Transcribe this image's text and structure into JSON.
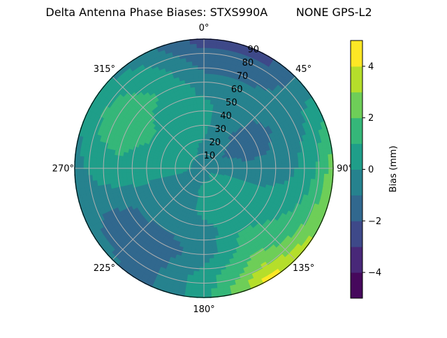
{
  "chart_data": {
    "type": "heatmap",
    "subtype": "polar-filled-contour",
    "title": "Delta Antenna Phase Biases: STXS990A        NONE GPS-L2",
    "colorbar_label": "Bias (mm)",
    "colormap": "viridis",
    "levels": [
      -5,
      -4,
      -3,
      -2,
      -1,
      0,
      1,
      2,
      3,
      4,
      5
    ],
    "level_colors": [
      "#46085c",
      "#482878",
      "#3e4989",
      "#31688e",
      "#26828e",
      "#1f9e89",
      "#35b779",
      "#6ece58",
      "#b5de2b",
      "#fde725"
    ],
    "colorbar_ticks": [
      "−4",
      "−2",
      "0",
      "2",
      "4"
    ],
    "colorbar_tick_values": [
      -4,
      -2,
      0,
      2,
      4
    ],
    "angle_ticks": [
      {
        "deg": 0,
        "label": "0°"
      },
      {
        "deg": 45,
        "label": "45°"
      },
      {
        "deg": 90,
        "label": "90°"
      },
      {
        "deg": 135,
        "label": "135°"
      },
      {
        "deg": 180,
        "label": "180°"
      },
      {
        "deg": 225,
        "label": "225°"
      },
      {
        "deg": 270,
        "label": "270°"
      },
      {
        "deg": 315,
        "label": "315°"
      }
    ],
    "radial_ticks": [
      "10",
      "20",
      "30",
      "40",
      "50",
      "60",
      "70",
      "80",
      "90"
    ],
    "radial_tick_values": [
      10,
      20,
      30,
      40,
      50,
      60,
      70,
      80,
      90
    ],
    "rlim": [
      0,
      90
    ],
    "theta_zero": "north",
    "theta_direction": "clockwise",
    "grid": true,
    "azimuth_deg": [
      0,
      30,
      60,
      90,
      120,
      150,
      180,
      210,
      240,
      270,
      300,
      330
    ],
    "zenith_deg": [
      0,
      15,
      30,
      45,
      60,
      75,
      90
    ],
    "bias_mm": [
      [
        -0.3,
        -0.2,
        0.3,
        0.2,
        -0.5,
        -1.5,
        -2.5
      ],
      [
        -0.3,
        -0.5,
        -0.8,
        -0.5,
        -0.6,
        -1.5,
        -2.5
      ],
      [
        -0.3,
        -1.0,
        -1.5,
        -1.5,
        -0.6,
        -0.3,
        0.5
      ],
      [
        -0.3,
        -0.5,
        -0.8,
        -0.6,
        -0.3,
        0.6,
        2.5
      ],
      [
        -0.3,
        0.3,
        0.5,
        0.5,
        0.8,
        1.5,
        3.0
      ],
      [
        -0.3,
        0.3,
        0.5,
        0.8,
        1.5,
        2.5,
        4.5
      ],
      [
        -0.3,
        0.2,
        0.3,
        -0.5,
        -0.5,
        0.5,
        0.5
      ],
      [
        -0.3,
        -0.2,
        -0.5,
        -0.8,
        -1.5,
        -1.5,
        -1.3
      ],
      [
        -0.3,
        -0.3,
        -0.5,
        -0.5,
        -1.2,
        -1.5,
        -0.5
      ],
      [
        -0.3,
        0.2,
        0.3,
        0.5,
        0.8,
        0.5,
        -0.5
      ],
      [
        -0.3,
        0.3,
        0.6,
        1.2,
        1.5,
        1.5,
        0.3
      ],
      [
        -0.3,
        0.2,
        0.5,
        0.6,
        1.0,
        0.5,
        -0.5
      ]
    ]
  }
}
